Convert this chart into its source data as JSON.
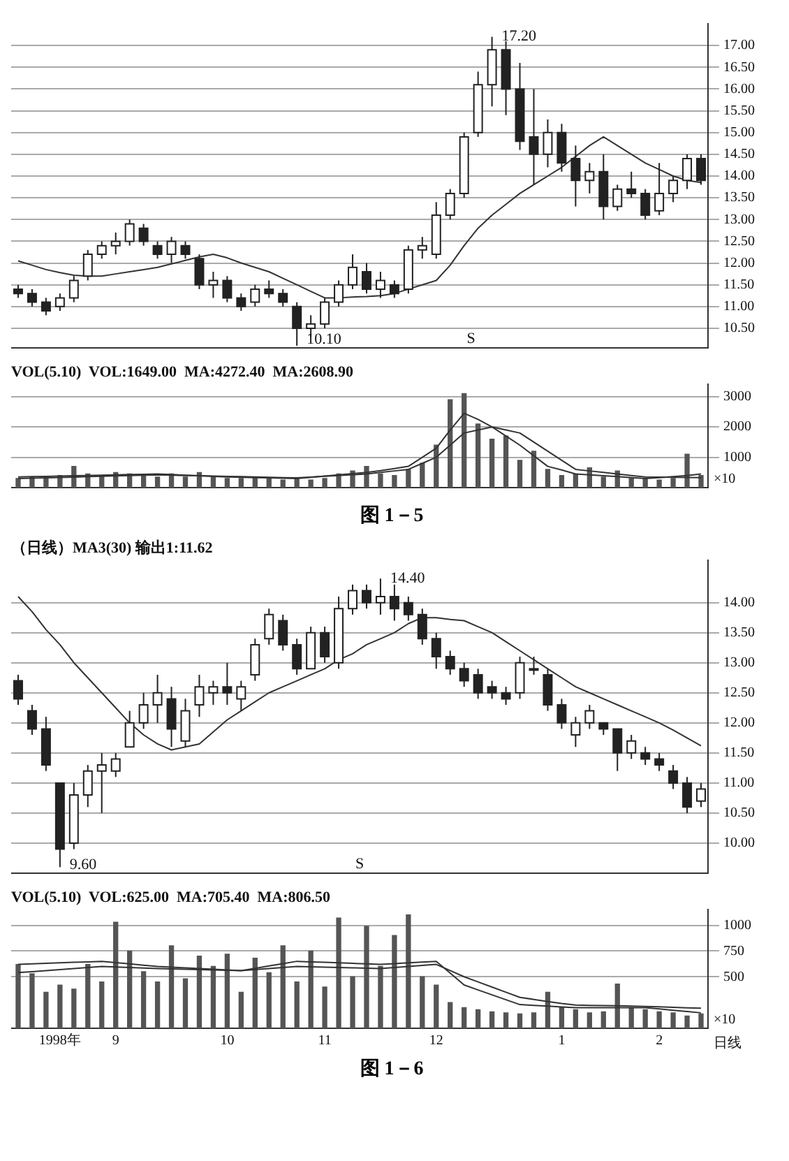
{
  "chart_data": [
    {
      "type": "candlestick",
      "categories": [
        null,
        null,
        null,
        null,
        null,
        null,
        null,
        null,
        null,
        null,
        null,
        null,
        null,
        null,
        null,
        null,
        null,
        null,
        null,
        null,
        null,
        null,
        null,
        null,
        null,
        null,
        null,
        null,
        null,
        null,
        null,
        null,
        null,
        null,
        null,
        null,
        null,
        null,
        null,
        null,
        null,
        null,
        null,
        null,
        null,
        null,
        null,
        null,
        null,
        null
      ],
      "ylim": [
        10.05,
        17.5
      ],
      "yticks": [
        {
          "value": 10.5,
          "label": "10.50"
        },
        {
          "value": 11,
          "label": "11.00"
        },
        {
          "value": 11.5,
          "label": "11.50"
        },
        {
          "value": 12,
          "label": "12.00"
        },
        {
          "value": 12.5,
          "label": "12.50"
        },
        {
          "value": 13,
          "label": "13.00"
        },
        {
          "value": 13.5,
          "label": "13.50"
        },
        {
          "value": 14,
          "label": "14.00"
        },
        {
          "value": 14.5,
          "label": "14.50"
        },
        {
          "value": 15,
          "label": "15.00"
        },
        {
          "value": 15.5,
          "label": "15.50"
        },
        {
          "value": 16,
          "label": "16.00"
        },
        {
          "value": 16.5,
          "label": "16.50"
        },
        {
          "value": 17,
          "label": "17.00"
        }
      ],
      "tick_labels": "y",
      "grid": "y",
      "ohlc": [
        [
          11.4,
          11.5,
          11.2,
          11.3
        ],
        [
          11.3,
          11.4,
          11.0,
          11.1
        ],
        [
          11.1,
          11.2,
          10.8,
          10.9
        ],
        [
          11.0,
          11.3,
          10.9,
          11.2
        ],
        [
          11.2,
          11.7,
          11.1,
          11.6
        ],
        [
          11.7,
          12.3,
          11.6,
          12.2
        ],
        [
          12.2,
          12.5,
          12.1,
          12.4
        ],
        [
          12.4,
          12.7,
          12.2,
          12.5
        ],
        [
          12.5,
          13.0,
          12.4,
          12.9
        ],
        [
          12.8,
          12.9,
          12.4,
          12.5
        ],
        [
          12.4,
          12.5,
          12.1,
          12.2
        ],
        [
          12.2,
          12.6,
          12.0,
          12.5
        ],
        [
          12.4,
          12.5,
          12.1,
          12.2
        ],
        [
          12.1,
          12.2,
          11.4,
          11.5
        ],
        [
          11.5,
          11.8,
          11.2,
          11.6
        ],
        [
          11.6,
          11.7,
          11.1,
          11.2
        ],
        [
          11.2,
          11.3,
          10.9,
          11.0
        ],
        [
          11.1,
          11.5,
          11.0,
          11.4
        ],
        [
          11.4,
          11.6,
          11.2,
          11.3
        ],
        [
          11.3,
          11.4,
          11.0,
          11.1
        ],
        [
          11.0,
          11.1,
          10.1,
          10.5
        ],
        [
          10.5,
          10.8,
          10.3,
          10.6
        ],
        [
          10.6,
          11.2,
          10.5,
          11.1
        ],
        [
          11.1,
          11.6,
          11.0,
          11.5
        ],
        [
          11.5,
          12.2,
          11.4,
          11.9
        ],
        [
          11.8,
          12.0,
          11.3,
          11.4
        ],
        [
          11.4,
          11.8,
          11.2,
          11.6
        ],
        [
          11.5,
          11.6,
          11.2,
          11.3
        ],
        [
          11.4,
          12.4,
          11.3,
          12.3
        ],
        [
          12.3,
          12.6,
          12.1,
          12.4
        ],
        [
          12.2,
          13.4,
          12.1,
          13.1
        ],
        [
          13.1,
          13.7,
          13.0,
          13.6
        ],
        [
          13.6,
          15.0,
          13.5,
          14.9
        ],
        [
          15.0,
          16.4,
          14.9,
          16.1
        ],
        [
          16.1,
          17.2,
          15.6,
          16.9
        ],
        [
          16.9,
          17.1,
          15.4,
          16.0
        ],
        [
          16.0,
          16.6,
          14.6,
          14.8
        ],
        [
          14.9,
          16.0,
          13.8,
          14.5
        ],
        [
          14.5,
          15.3,
          14.2,
          15.0
        ],
        [
          15.0,
          15.2,
          14.1,
          14.3
        ],
        [
          14.4,
          14.7,
          13.3,
          13.9
        ],
        [
          13.9,
          14.3,
          13.6,
          14.1
        ],
        [
          14.1,
          14.5,
          13.0,
          13.3
        ],
        [
          13.3,
          13.8,
          13.2,
          13.7
        ],
        [
          13.7,
          14.1,
          13.5,
          13.6
        ],
        [
          13.6,
          13.7,
          13.0,
          13.1
        ],
        [
          13.2,
          14.3,
          13.1,
          13.6
        ],
        [
          13.6,
          14.0,
          13.4,
          13.9
        ],
        [
          13.9,
          14.5,
          13.7,
          14.4
        ],
        [
          14.4,
          14.5,
          13.8,
          13.9
        ]
      ],
      "series": [
        {
          "type": "line",
          "color": "#333333",
          "values": [
            12.05,
            11.95,
            11.85,
            11.78,
            11.72,
            11.7,
            11.7,
            11.75,
            11.8,
            11.85,
            11.9,
            11.98,
            12.06,
            12.14,
            12.2,
            12.12,
            12.0,
            11.9,
            11.8,
            11.65,
            11.5,
            11.35,
            11.2,
            11.2,
            11.22,
            11.23,
            11.25,
            11.3,
            11.4,
            11.5,
            11.6,
            11.95,
            12.4,
            12.8,
            13.1,
            13.35,
            13.6,
            13.8,
            14.0,
            14.2,
            14.45,
            14.7,
            14.9,
            14.7,
            14.5,
            14.3,
            14.15,
            14.0,
            13.9,
            13.85
          ]
        }
      ],
      "annotations": [
        "17.20",
        "10.10",
        {
          "text": "S"
        }
      ]
    },
    {
      "type": "bar",
      "title": "VOL(5.10)  VOL:1649.00  MA:4272.40  MA:2608.90",
      "ylabel": "×10",
      "categories": [
        null,
        null,
        null,
        null,
        null,
        null,
        null,
        null,
        null,
        null,
        null,
        null,
        null,
        null,
        null,
        null,
        null,
        null,
        null,
        null,
        null,
        null,
        null,
        null,
        null,
        null,
        null,
        null,
        null,
        null,
        null,
        null,
        null,
        null,
        null,
        null,
        null,
        null,
        null,
        null,
        null,
        null,
        null,
        null,
        null,
        null,
        null,
        null,
        null,
        null
      ],
      "ylim": [
        0,
        3400
      ],
      "yticks": [
        1000,
        2000,
        3000
      ],
      "tick_labels": "y",
      "grid": "y",
      "series": [
        {
          "type": "bar",
          "color": "#555555",
          "values": [
            300,
            350,
            300,
            400,
            700,
            450,
            400,
            500,
            450,
            400,
            350,
            450,
            350,
            500,
            350,
            300,
            300,
            350,
            300,
            250,
            300,
            250,
            300,
            450,
            550,
            700,
            450,
            400,
            600,
            800,
            1400,
            2900,
            3100,
            2100,
            1600,
            1700,
            900,
            1200,
            600,
            400,
            450,
            650,
            350,
            550,
            300,
            300,
            250,
            300,
            1100,
            400
          ]
        },
        {
          "type": "line",
          "color": "#333333",
          "values": [
            350,
            360,
            370,
            380,
            390,
            400,
            410,
            420,
            430,
            440,
            450,
            430,
            410,
            390,
            370,
            350,
            340,
            330,
            320,
            310,
            300,
            340,
            380,
            420,
            460,
            500,
            560,
            630,
            700,
            1000,
            1300,
            1900,
            2450,
            2250,
            2000,
            1700,
            1400,
            1050,
            700,
            580,
            450,
            420,
            390,
            360,
            330,
            300,
            330,
            360,
            400,
            450
          ]
        },
        {
          "type": "line",
          "color": "#333333",
          "values": [
            300,
            312,
            324,
            336,
            348,
            360,
            372,
            384,
            396,
            408,
            420,
            410,
            400,
            390,
            380,
            370,
            360,
            350,
            340,
            330,
            320,
            346,
            372,
            398,
            424,
            450,
            500,
            550,
            600,
            800,
            1000,
            1400,
            1800,
            1900,
            2000,
            1900,
            1800,
            1500,
            1200,
            900,
            600,
            550,
            500,
            450,
            400,
            350,
            345,
            340,
            335,
            330
          ]
        }
      ],
      "annotations": [
        "图 1－5"
      ]
    },
    {
      "type": "candlestick",
      "title": "（日线）MA3(30) 输出1:11.62",
      "categories": [
        null,
        null,
        null,
        null,
        null,
        null,
        null,
        null,
        null,
        null,
        null,
        null,
        null,
        null,
        null,
        null,
        null,
        null,
        null,
        null,
        null,
        null,
        null,
        null,
        null,
        null,
        null,
        null,
        null,
        null,
        null,
        null,
        null,
        null,
        null,
        null,
        null,
        null,
        null,
        null,
        null,
        null,
        null,
        null,
        null,
        null,
        null,
        null,
        null,
        null
      ],
      "ylim": [
        9.5,
        14.7
      ],
      "yticks": [
        {
          "value": 10,
          "label": "10.00"
        },
        {
          "value": 10.5,
          "label": "10.50"
        },
        {
          "value": 11,
          "label": "11.00"
        },
        {
          "value": 11.5,
          "label": "11.50"
        },
        {
          "value": 12,
          "label": "12.00"
        },
        {
          "value": 12.5,
          "label": "12.50"
        },
        {
          "value": 13,
          "label": "13.00"
        },
        {
          "value": 13.5,
          "label": "13.50"
        },
        {
          "value": 14,
          "label": "14.00"
        }
      ],
      "tick_labels": "y",
      "grid": "y",
      "ohlc": [
        [
          12.7,
          12.8,
          12.3,
          12.4
        ],
        [
          12.2,
          12.3,
          11.8,
          11.9
        ],
        [
          11.9,
          12.1,
          11.2,
          11.3
        ],
        [
          11.0,
          11.0,
          9.6,
          9.9
        ],
        [
          10.0,
          11.0,
          9.9,
          10.8
        ],
        [
          10.8,
          11.3,
          10.6,
          11.2
        ],
        [
          11.2,
          11.5,
          10.5,
          11.3
        ],
        [
          11.2,
          11.5,
          11.1,
          11.4
        ],
        [
          11.6,
          12.2,
          11.6,
          12.0
        ],
        [
          12.0,
          12.5,
          11.9,
          12.3
        ],
        [
          12.3,
          12.8,
          12.0,
          12.5
        ],
        [
          12.4,
          12.6,
          11.6,
          11.9
        ],
        [
          11.7,
          12.4,
          11.6,
          12.2
        ],
        [
          12.3,
          12.8,
          12.1,
          12.6
        ],
        [
          12.5,
          12.7,
          12.3,
          12.6
        ],
        [
          12.6,
          13.0,
          12.3,
          12.5
        ],
        [
          12.4,
          12.7,
          12.2,
          12.6
        ],
        [
          12.8,
          13.4,
          12.7,
          13.3
        ],
        [
          13.4,
          13.9,
          13.3,
          13.8
        ],
        [
          13.7,
          13.8,
          13.2,
          13.3
        ],
        [
          13.3,
          13.4,
          12.8,
          12.9
        ],
        [
          12.9,
          13.6,
          12.9,
          13.5
        ],
        [
          13.5,
          13.6,
          13.0,
          13.1
        ],
        [
          13.0,
          14.1,
          12.9,
          13.9
        ],
        [
          13.9,
          14.3,
          13.8,
          14.2
        ],
        [
          14.2,
          14.3,
          13.9,
          14.0
        ],
        [
          14.0,
          14.4,
          13.8,
          14.1
        ],
        [
          14.1,
          14.3,
          13.7,
          13.9
        ],
        [
          14.0,
          14.1,
          13.7,
          13.8
        ],
        [
          13.8,
          13.9,
          13.3,
          13.4
        ],
        [
          13.4,
          13.5,
          12.9,
          13.1
        ],
        [
          13.1,
          13.2,
          12.8,
          12.9
        ],
        [
          12.9,
          13.0,
          12.6,
          12.7
        ],
        [
          12.8,
          12.9,
          12.4,
          12.5
        ],
        [
          12.6,
          12.7,
          12.4,
          12.5
        ],
        [
          12.5,
          12.6,
          12.3,
          12.4
        ],
        [
          12.5,
          13.1,
          12.4,
          13.0
        ],
        [
          12.9,
          13.1,
          12.8,
          12.9
        ],
        [
          12.8,
          12.9,
          12.2,
          12.3
        ],
        [
          12.3,
          12.4,
          11.9,
          12.0
        ],
        [
          11.8,
          12.1,
          11.6,
          12.0
        ],
        [
          12.0,
          12.3,
          11.9,
          12.2
        ],
        [
          12.0,
          12.0,
          11.8,
          11.9
        ],
        [
          11.9,
          11.9,
          11.2,
          11.5
        ],
        [
          11.5,
          11.8,
          11.4,
          11.7
        ],
        [
          11.5,
          11.6,
          11.3,
          11.4
        ],
        [
          11.4,
          11.5,
          11.2,
          11.3
        ],
        [
          11.2,
          11.3,
          10.9,
          11.0
        ],
        [
          11.0,
          11.1,
          10.5,
          10.6
        ],
        [
          10.7,
          11.0,
          10.6,
          10.9
        ]
      ],
      "series": [
        {
          "type": "line",
          "color": "#333333",
          "values": [
            14.1,
            13.85,
            13.55,
            13.3,
            13.0,
            12.75,
            12.5,
            12.25,
            12.0,
            11.8,
            11.65,
            11.55,
            11.6,
            11.65,
            11.85,
            12.05,
            12.2,
            12.35,
            12.5,
            12.6,
            12.7,
            12.8,
            12.9,
            13.05,
            13.15,
            13.3,
            13.4,
            13.5,
            13.65,
            13.75,
            13.75,
            13.72,
            13.7,
            13.6,
            13.5,
            13.35,
            13.2,
            13.05,
            12.9,
            12.75,
            12.6,
            12.5,
            12.4,
            12.3,
            12.2,
            12.1,
            12.0,
            11.88,
            11.75,
            11.62
          ]
        }
      ],
      "annotations": [
        "14.40",
        "9.60",
        {
          "text": "S"
        }
      ]
    },
    {
      "type": "bar",
      "title": "VOL(5.10)  VOL:625.00  MA:705.40  MA:806.50",
      "ylabel": "×10",
      "xlabel": "日线",
      "categories": [
        null,
        null,
        null,
        "1998年",
        null,
        null,
        null,
        "9",
        null,
        null,
        null,
        null,
        null,
        null,
        null,
        "10",
        null,
        null,
        null,
        null,
        null,
        null,
        "11",
        null,
        null,
        null,
        null,
        null,
        null,
        null,
        "12",
        null,
        null,
        null,
        null,
        null,
        null,
        null,
        null,
        "1",
        null,
        null,
        null,
        null,
        null,
        null,
        "2",
        null,
        null,
        null
      ],
      "ylim": [
        0,
        1150
      ],
      "yticks": [
        500,
        750,
        1000
      ],
      "grid": "y",
      "series": [
        {
          "type": "bar",
          "color": "#555555",
          "values": [
            620,
            530,
            350,
            420,
            380,
            620,
            450,
            1030,
            750,
            550,
            450,
            800,
            480,
            700,
            600,
            720,
            350,
            680,
            540,
            800,
            450,
            750,
            400,
            1070,
            500,
            990,
            600,
            900,
            1100,
            500,
            420,
            250,
            200,
            180,
            160,
            150,
            140,
            150,
            350,
            200,
            180,
            150,
            160,
            430,
            200,
            180,
            160,
            150,
            120,
            140
          ]
        },
        {
          "type": "line",
          "color": "#333333",
          "values": [
            620,
            625,
            630,
            635,
            640,
            645,
            650,
            637,
            625,
            612,
            600,
            593,
            587,
            580,
            573,
            567,
            560,
            582,
            605,
            627,
            650,
            645,
            640,
            635,
            630,
            625,
            620,
            627,
            635,
            642,
            650,
            535,
            420,
            372,
            325,
            277,
            230,
            222,
            215,
            207,
            200,
            200,
            200,
            200,
            200,
            200,
            188,
            175,
            162,
            150
          ]
        },
        {
          "type": "line",
          "color": "#333333",
          "values": [
            540,
            550,
            560,
            570,
            580,
            590,
            600,
            595,
            590,
            585,
            580,
            577,
            573,
            570,
            567,
            563,
            560,
            570,
            580,
            590,
            600,
            597,
            593,
            590,
            587,
            583,
            580,
            590,
            600,
            610,
            620,
            560,
            500,
            450,
            400,
            350,
            300,
            280,
            260,
            240,
            225,
            222,
            220,
            218,
            215,
            212,
            208,
            203,
            198,
            195
          ]
        }
      ],
      "annotations": [
        "图 1－6"
      ]
    }
  ]
}
